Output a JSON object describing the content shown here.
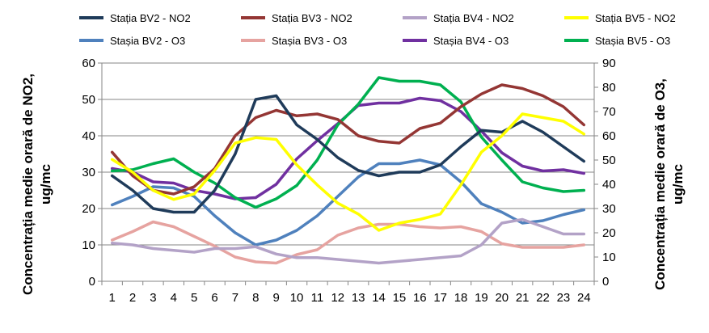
{
  "chart_data": {
    "type": "line",
    "x": [
      1,
      2,
      3,
      4,
      5,
      6,
      7,
      8,
      9,
      10,
      11,
      12,
      13,
      14,
      15,
      16,
      17,
      18,
      19,
      20,
      21,
      22,
      23,
      24
    ],
    "left_axis": {
      "label_line1": "Concentrația medie orară de NO2,",
      "label_line2": "ug/mc",
      "ylim": [
        0,
        60
      ],
      "ticks": [
        0,
        10,
        20,
        30,
        40,
        50,
        60
      ]
    },
    "right_axis": {
      "label_line1": "Concentrația medie orară de O3,",
      "label_line2": "ug/mc",
      "ylim": [
        0,
        90
      ],
      "ticks": [
        0,
        10,
        20,
        30,
        40,
        50,
        60,
        70,
        80,
        90
      ]
    },
    "grid": "horizontal",
    "legend_position": "top",
    "series": [
      {
        "name": "Stația BV2 - NO2",
        "axis": "left",
        "color": "#1f3b5a",
        "values": [
          29,
          25,
          20,
          19,
          19,
          25,
          35,
          50,
          51,
          43,
          39,
          34,
          30.5,
          29,
          30,
          30,
          32,
          37,
          41.5,
          41,
          44,
          41,
          37,
          33
        ]
      },
      {
        "name": "Stația BV3 - NO2",
        "axis": "left",
        "color": "#943634",
        "values": [
          35.5,
          29,
          25,
          24,
          26,
          31,
          40,
          45,
          47,
          45.5,
          46,
          44.5,
          40,
          38.5,
          38,
          42,
          43.5,
          48,
          51.5,
          54,
          53,
          51,
          48,
          43
        ]
      },
      {
        "name": "Stația BV4 - NO2",
        "axis": "left",
        "color": "#b3a2c7",
        "values": [
          10.5,
          10,
          9,
          8.5,
          8,
          9,
          9,
          9.5,
          7.5,
          6.5,
          6.5,
          6,
          5.5,
          5,
          5.5,
          6,
          6.5,
          7,
          10,
          16,
          17,
          15,
          13,
          13
        ]
      },
      {
        "name": "Stația BV5 - NO2",
        "axis": "left",
        "color": "#ffff00",
        "values": [
          33.5,
          30,
          25,
          22.5,
          24,
          30.5,
          38,
          39.5,
          39,
          32,
          26.5,
          21.5,
          18.5,
          14,
          16,
          17,
          18.5,
          26.5,
          35.5,
          40,
          46,
          45,
          44,
          40.5
        ]
      },
      {
        "name": "Stașia BV2 - O3",
        "axis": "right",
        "color": "#4f81bd",
        "values": [
          31.5,
          35,
          39,
          38.5,
          35,
          27,
          20,
          15,
          17,
          21,
          27,
          35,
          43,
          48.5,
          48.5,
          50,
          48,
          41,
          32,
          28.5,
          24,
          25,
          27.5,
          29.5
        ]
      },
      {
        "name": "Stașia BV3 - O3",
        "axis": "right",
        "color": "#e6a3a0",
        "values": [
          17,
          20.5,
          24.5,
          22.5,
          18.5,
          14.5,
          10,
          8,
          7.5,
          11,
          13,
          19,
          22,
          23.5,
          23.5,
          22.5,
          22,
          22.5,
          20.5,
          15.5,
          14,
          14,
          14,
          15
        ]
      },
      {
        "name": "Stașia BV4 - O3",
        "axis": "right",
        "color": "#7030a0",
        "values": [
          46.5,
          45,
          41,
          40.5,
          37.5,
          36,
          34,
          34.5,
          40,
          50.5,
          58,
          65,
          72.5,
          73.5,
          73.5,
          75.5,
          74.5,
          70,
          62,
          53,
          47.5,
          45.5,
          46,
          44.5
        ]
      },
      {
        "name": "Stașia BV5 - O3",
        "axis": "right",
        "color": "#00b050",
        "values": [
          45.5,
          46,
          48.5,
          50.5,
          45,
          40.5,
          34.5,
          30.5,
          34,
          39.5,
          50,
          64.5,
          73,
          84,
          82.5,
          82.5,
          81,
          74,
          59.5,
          50,
          41,
          38.5,
          37,
          37.5
        ]
      }
    ],
    "legend": [
      [
        "Stația BV2 - NO2",
        "Stația BV3 - NO2",
        "Stația BV4 - NO2",
        "Stația BV5 - NO2"
      ],
      [
        "Stașia BV2 - O3",
        "Stașia BV3 - O3",
        "Stașia BV4 - O3",
        "Stașia BV5 - O3"
      ]
    ]
  }
}
